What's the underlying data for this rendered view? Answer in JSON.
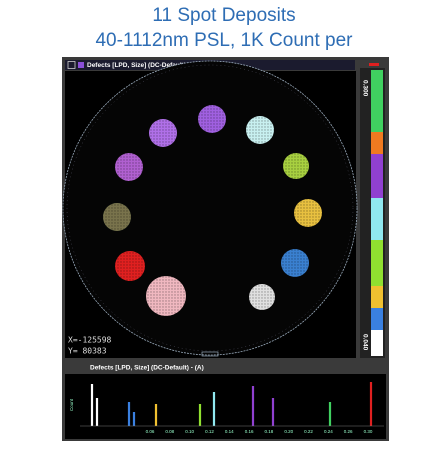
{
  "header": {
    "title_line_1": "11 Spot Deposits",
    "title_line_2": "40-1112nm PSL, 1K Count per"
  },
  "map_panel": {
    "header": "Defects [LPD, Size] (DC-Default)",
    "x_coordinate": "X=-125598",
    "y_coordinate": "Y=  80383",
    "scale_max": "0.300",
    "scale_min": "0.040"
  },
  "histogram_panel": {
    "header": "Defects [LPD, Size] (DC-Default) - (A)",
    "y_label": "Count",
    "x_tick_labels": [
      "0.06",
      "0.08",
      "0.10",
      "0.12",
      "0.14",
      "0.16",
      "0.18",
      "0.20",
      "0.22",
      "0.24",
      "0.26",
      "0.30"
    ]
  }
}
